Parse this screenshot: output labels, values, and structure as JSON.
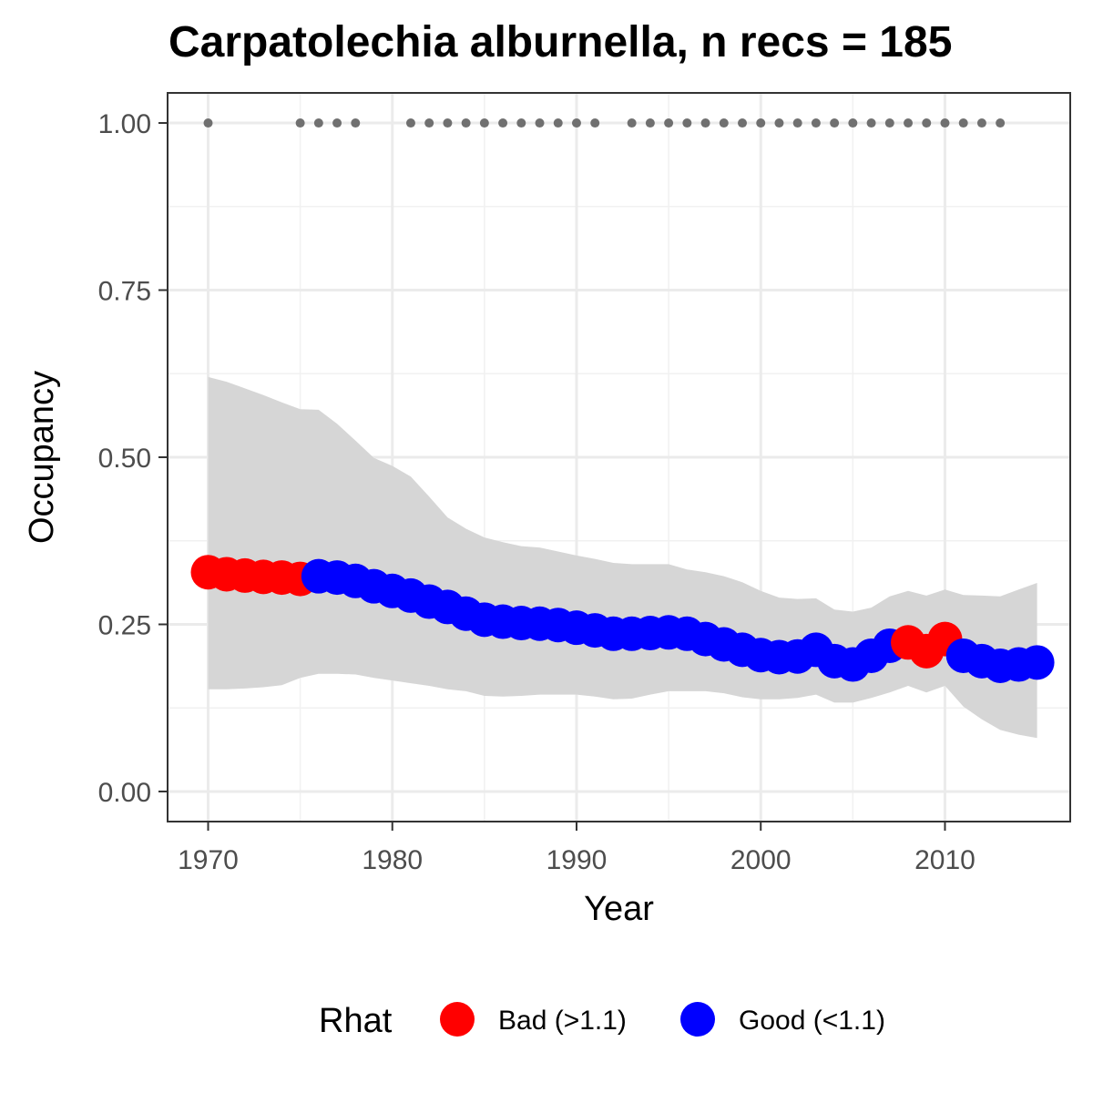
{
  "chart_data": {
    "type": "line",
    "title": "Carpatolechia alburnella, n recs = 185",
    "xlabel": "Year",
    "ylabel": "Occupancy",
    "xlim": [
      1967.8,
      2016.8
    ],
    "ylim": [
      -0.045,
      1.045
    ],
    "x_ticks": [
      1970,
      1980,
      1990,
      2000,
      2010
    ],
    "x_tick_labels": [
      "1970",
      "1980",
      "1990",
      "2000",
      "2010"
    ],
    "y_ticks": [
      0,
      0.25,
      0.5,
      0.75,
      1.0
    ],
    "y_tick_labels": [
      "0.00",
      "0.25",
      "0.50",
      "0.75",
      "1.00"
    ],
    "grid": true,
    "legend": {
      "title": "Rhat",
      "position": "bottom",
      "entries": [
        {
          "label": "Bad (>1.1)",
          "color": "#ff0000"
        },
        {
          "label": "Good (<1.1)",
          "color": "#0000ff"
        }
      ]
    },
    "colors": {
      "bad": "#ff0000",
      "good": "#0000ff",
      "ribbon": "#d6d6d6",
      "records": "#707070"
    },
    "series": [
      {
        "name": "Occupancy",
        "x": [
          1970,
          1971,
          1972,
          1973,
          1974,
          1975,
          1976,
          1977,
          1978,
          1979,
          1980,
          1981,
          1982,
          1983,
          1984,
          1985,
          1986,
          1987,
          1988,
          1989,
          1990,
          1991,
          1992,
          1993,
          1994,
          1995,
          1996,
          1997,
          1998,
          1999,
          2000,
          2001,
          2002,
          2003,
          2004,
          2005,
          2006,
          2007,
          2008,
          2009,
          2010,
          2011,
          2012,
          2013,
          2014,
          2015
        ],
        "y": [
          0.328,
          0.325,
          0.323,
          0.321,
          0.32,
          0.318,
          0.322,
          0.32,
          0.315,
          0.307,
          0.3,
          0.293,
          0.284,
          0.276,
          0.266,
          0.257,
          0.254,
          0.252,
          0.251,
          0.249,
          0.245,
          0.241,
          0.236,
          0.236,
          0.237,
          0.238,
          0.236,
          0.228,
          0.22,
          0.212,
          0.204,
          0.201,
          0.202,
          0.212,
          0.195,
          0.19,
          0.203,
          0.218,
          0.223,
          0.21,
          0.228,
          0.203,
          0.195,
          0.188,
          0.19,
          0.193
        ],
        "rhat": [
          "Bad",
          "Bad",
          "Bad",
          "Bad",
          "Bad",
          "Bad",
          "Good",
          "Good",
          "Good",
          "Good",
          "Good",
          "Good",
          "Good",
          "Good",
          "Good",
          "Good",
          "Good",
          "Good",
          "Good",
          "Good",
          "Good",
          "Good",
          "Good",
          "Good",
          "Good",
          "Good",
          "Good",
          "Good",
          "Good",
          "Good",
          "Good",
          "Good",
          "Good",
          "Good",
          "Good",
          "Good",
          "Good",
          "Good",
          "Bad",
          "Bad",
          "Bad",
          "Good",
          "Good",
          "Good",
          "Good",
          "Good"
        ]
      },
      {
        "name": "Upper CI",
        "x": [
          1970,
          1971,
          1972,
          1973,
          1974,
          1975,
          1976,
          1977,
          1978,
          1979,
          1980,
          1981,
          1982,
          1983,
          1984,
          1985,
          1986,
          1987,
          1988,
          1989,
          1990,
          1991,
          1992,
          1993,
          1994,
          1995,
          1996,
          1997,
          1998,
          1999,
          2000,
          2001,
          2002,
          2003,
          2004,
          2005,
          2006,
          2007,
          2008,
          2009,
          2010,
          2011,
          2012,
          2013,
          2014,
          2015
        ],
        "y": [
          0.62,
          0.613,
          0.603,
          0.593,
          0.582,
          0.572,
          0.571,
          0.55,
          0.525,
          0.499,
          0.487,
          0.471,
          0.441,
          0.41,
          0.393,
          0.38,
          0.373,
          0.367,
          0.365,
          0.359,
          0.353,
          0.348,
          0.342,
          0.34,
          0.34,
          0.34,
          0.332,
          0.328,
          0.322,
          0.313,
          0.3,
          0.29,
          0.288,
          0.289,
          0.272,
          0.269,
          0.275,
          0.292,
          0.3,
          0.293,
          0.302,
          0.294,
          0.293,
          0.292,
          0.302,
          0.312
        ]
      },
      {
        "name": "Lower CI",
        "x": [
          1970,
          1971,
          1972,
          1973,
          1974,
          1975,
          1976,
          1977,
          1978,
          1979,
          1980,
          1981,
          1982,
          1983,
          1984,
          1985,
          1986,
          1987,
          1988,
          1989,
          1990,
          1991,
          1992,
          1993,
          1994,
          1995,
          1996,
          1997,
          1998,
          1999,
          2000,
          2001,
          2002,
          2003,
          2004,
          2005,
          2006,
          2007,
          2008,
          2009,
          2010,
          2011,
          2012,
          2013,
          2014,
          2015
        ],
        "y": [
          0.153,
          0.153,
          0.154,
          0.156,
          0.159,
          0.17,
          0.176,
          0.176,
          0.175,
          0.17,
          0.166,
          0.162,
          0.158,
          0.153,
          0.15,
          0.143,
          0.142,
          0.143,
          0.145,
          0.145,
          0.145,
          0.142,
          0.138,
          0.139,
          0.145,
          0.15,
          0.15,
          0.15,
          0.147,
          0.141,
          0.138,
          0.138,
          0.14,
          0.145,
          0.133,
          0.133,
          0.14,
          0.148,
          0.158,
          0.148,
          0.158,
          0.127,
          0.108,
          0.092,
          0.085,
          0.08
        ]
      }
    ],
    "record_years": [
      1970,
      1975,
      1976,
      1977,
      1978,
      1981,
      1982,
      1983,
      1984,
      1985,
      1986,
      1987,
      1988,
      1989,
      1990,
      1991,
      1993,
      1994,
      1995,
      1996,
      1997,
      1998,
      1999,
      2000,
      2001,
      2002,
      2003,
      2004,
      2005,
      2006,
      2007,
      2008,
      2009,
      2010,
      2011,
      2012,
      2013
    ],
    "record_value": 1.0
  }
}
